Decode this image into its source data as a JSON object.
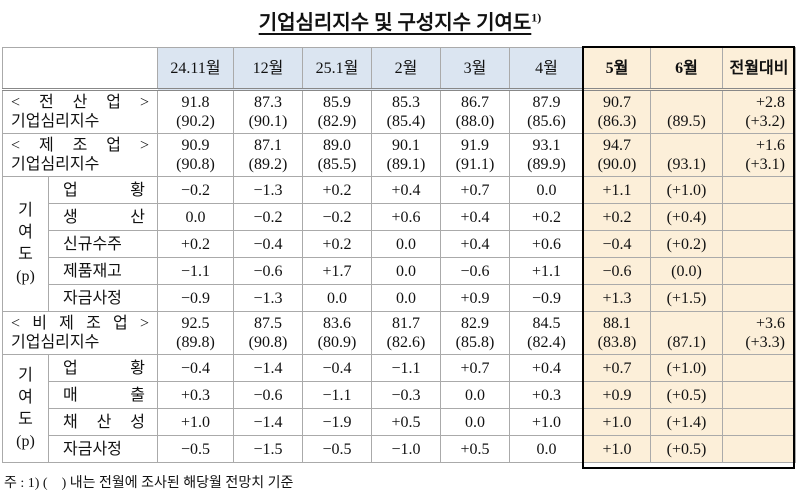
{
  "title": "기업심리지수 및 구성지수 기여도",
  "title_note": "1)",
  "table": {
    "columns": [
      "24.11월",
      "12월",
      "25.1월",
      "2월",
      "3월",
      "4월",
      "5월",
      "6월",
      "전월대비"
    ],
    "sections": [
      {
        "label": [
          "< 전 산 업 >",
          "기업심리지수"
        ],
        "cells": [
          {
            "actual": "91.8",
            "forecast": "(90.2)"
          },
          {
            "actual": "87.3",
            "forecast": "(90.1)"
          },
          {
            "actual": "85.9",
            "forecast": "(82.9)"
          },
          {
            "actual": "85.3",
            "forecast": "(85.4)"
          },
          {
            "actual": "86.7",
            "forecast": "(88.0)"
          },
          {
            "actual": "87.9",
            "forecast": "(85.6)"
          },
          {
            "actual": "90.7",
            "forecast": "(86.3)"
          },
          {
            "forecast": "(89.5)"
          },
          {
            "actual": "+2.8",
            "forecast": "(+3.2)"
          }
        ]
      },
      {
        "label": [
          "< 제 조 업 >",
          "기업심리지수"
        ],
        "cells": [
          {
            "actual": "90.9",
            "forecast": "(90.8)"
          },
          {
            "actual": "87.1",
            "forecast": "(89.2)"
          },
          {
            "actual": "89.0",
            "forecast": "(85.5)"
          },
          {
            "actual": "90.1",
            "forecast": "(89.1)"
          },
          {
            "actual": "91.9",
            "forecast": "(91.1)"
          },
          {
            "actual": "93.1",
            "forecast": "(89.9)"
          },
          {
            "actual": "94.7",
            "forecast": "(90.0)"
          },
          {
            "forecast": "(93.1)"
          },
          {
            "actual": "+1.6",
            "forecast": "(+3.1)"
          }
        ],
        "contribution": {
          "label": [
            "기",
            "여",
            "도",
            "(p)"
          ],
          "rows": [
            {
              "label": "업 황",
              "cells": [
                "−0.2",
                "−1.3",
                "+0.2",
                "+0.4",
                "+0.7",
                "0.0",
                "+1.1",
                "(+1.0)"
              ]
            },
            {
              "label": "생 산",
              "cells": [
                "0.0",
                "−0.2",
                "−0.2",
                "+0.6",
                "+0.4",
                "+0.2",
                "+0.2",
                "(+0.4)"
              ]
            },
            {
              "label": "신규수주",
              "cells": [
                "+0.2",
                "−0.4",
                "+0.2",
                "0.0",
                "+0.4",
                "+0.6",
                "−0.4",
                "(+0.2)"
              ]
            },
            {
              "label": "제품재고",
              "cells": [
                "−1.1",
                "−0.6",
                "+1.7",
                "0.0",
                "−0.6",
                "+1.1",
                "−0.6",
                "(0.0)"
              ]
            },
            {
              "label": "자금사정",
              "cells": [
                "−0.9",
                "−1.3",
                "0.0",
                "0.0",
                "+0.9",
                "−0.9",
                "+1.3",
                "(+1.5)"
              ]
            }
          ]
        }
      },
      {
        "label": [
          "< 비 제 조 업 >",
          "기업심리지수"
        ],
        "cells": [
          {
            "actual": "92.5",
            "forecast": "(89.8)"
          },
          {
            "actual": "87.5",
            "forecast": "(90.8)"
          },
          {
            "actual": "83.6",
            "forecast": "(80.9)"
          },
          {
            "actual": "81.7",
            "forecast": "(82.6)"
          },
          {
            "actual": "82.9",
            "forecast": "(85.8)"
          },
          {
            "actual": "84.5",
            "forecast": "(82.4)"
          },
          {
            "actual": "88.1",
            "forecast": "(83.8)"
          },
          {
            "forecast": "(87.1)"
          },
          {
            "actual": "+3.6",
            "forecast": "(+3.3)"
          }
        ],
        "contribution": {
          "label": [
            "기",
            "여",
            "도",
            "(p)"
          ],
          "rows": [
            {
              "label": "업 황",
              "cells": [
                "−0.4",
                "−1.4",
                "−0.4",
                "−1.1",
                "+0.7",
                "+0.4",
                "+0.7",
                "(+1.0)"
              ]
            },
            {
              "label": "매 출",
              "cells": [
                "+0.3",
                "−0.6",
                "−1.1",
                "−0.3",
                "0.0",
                "+0.3",
                "+0.9",
                "(+0.5)"
              ]
            },
            {
              "label": "채 산 성",
              "cells": [
                "+1.0",
                "−1.4",
                "−1.9",
                "+0.5",
                "0.0",
                "+1.0",
                "+1.0",
                "(+1.4)"
              ]
            },
            {
              "label": "자금사정",
              "cells": [
                "−0.5",
                "−1.5",
                "−0.5",
                "−1.0",
                "+0.5",
                "0.0",
                "+1.0",
                "(+0.5)"
              ]
            }
          ]
        }
      }
    ]
  },
  "footnote": "주 : 1) (    ) 내는 전월에 조사된 해당월 전망치 기준"
}
